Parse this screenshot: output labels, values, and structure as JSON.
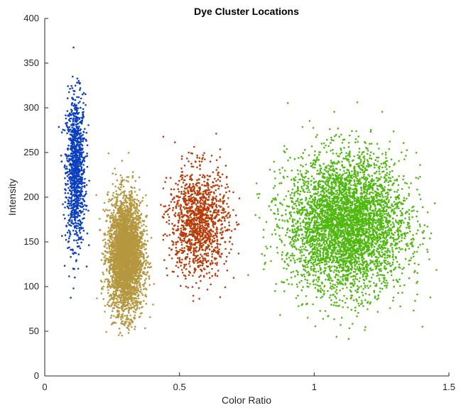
{
  "chart_data": {
    "type": "scatter",
    "title": "Dye Cluster Locations",
    "xlabel": "Color Ratio",
    "ylabel": "Intensity",
    "xlim": [
      0,
      1.5
    ],
    "ylim": [
      0,
      400
    ],
    "xticks": [
      0,
      0.5,
      1,
      1.5
    ],
    "xtick_labels": [
      "0",
      "0.5",
      "1",
      "1.5"
    ],
    "yticks": [
      0,
      50,
      100,
      150,
      200,
      250,
      300,
      350,
      400
    ],
    "ytick_labels": [
      "0",
      "50",
      "100",
      "150",
      "200",
      "250",
      "300",
      "350",
      "400"
    ],
    "grid": false,
    "series": [
      {
        "color": "#0b3fbf",
        "center": {
          "x": 0.115,
          "y": 230
        },
        "spread": {
          "x": 0.018,
          "y": 42
        },
        "count": 1100,
        "x_range": [
          0.05,
          0.17
        ],
        "y_range": [
          68,
          377
        ]
      },
      {
        "color": "#b5973f",
        "center": {
          "x": 0.3,
          "y": 135
        },
        "spread": {
          "x": 0.032,
          "y": 32
        },
        "count": 3500,
        "x_range": [
          0.19,
          0.41
        ],
        "y_range": [
          45,
          255
        ]
      },
      {
        "color": "#b83c08",
        "center": {
          "x": 0.57,
          "y": 172
        },
        "spread": {
          "x": 0.055,
          "y": 30
        },
        "count": 1300,
        "x_range": [
          0.43,
          0.75
        ],
        "y_range": [
          72,
          282
        ]
      },
      {
        "color": "#4fb80f",
        "center": {
          "x": 1.12,
          "y": 170
        },
        "spread": {
          "x": 0.11,
          "y": 38
        },
        "count": 4500,
        "x_range": [
          0.75,
          1.47
        ],
        "y_range": [
          35,
          310
        ]
      }
    ]
  }
}
